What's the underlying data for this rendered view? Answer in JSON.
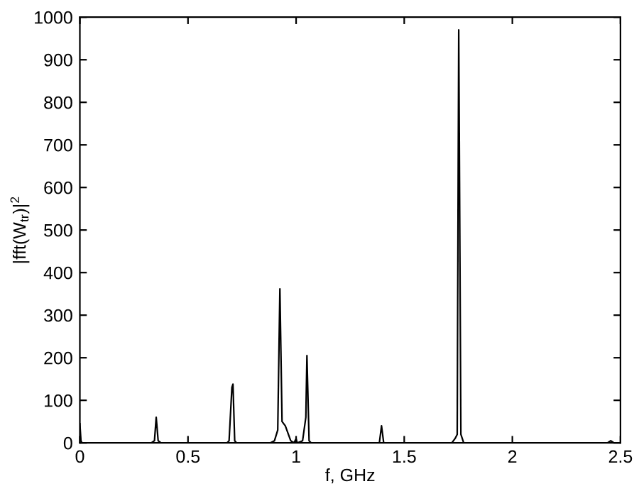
{
  "chart_data": {
    "type": "line",
    "xlabel": "f, GHz",
    "ylabel": "|fft(W$_{tr}$)|$^{2}$",
    "xlim": [
      0,
      2.5
    ],
    "xticks": [
      0,
      0.5,
      1,
      1.5,
      2,
      2.5
    ],
    "ylim": [
      0,
      1000
    ],
    "yticks": [
      0,
      100,
      200,
      300,
      400,
      500,
      600,
      700,
      800,
      900,
      1000
    ],
    "grid": false,
    "marker": "none",
    "line_style": "solid",
    "series": [
      {
        "color": "#000000",
        "x": [
          0,
          0.005,
          0.01,
          0.33,
          0.345,
          0.353,
          0.362,
          0.375,
          0.68,
          0.69,
          0.703,
          0.708,
          0.716,
          0.725,
          0.88,
          0.9,
          0.915,
          0.925,
          0.935,
          0.95,
          0.975,
          0.99,
          1.0,
          1.005,
          1.03,
          1.045,
          1.05,
          1.06,
          1.07,
          1.385,
          1.395,
          1.405,
          1.72,
          1.735,
          1.745,
          1.752,
          1.762,
          1.775,
          2.44,
          2.455,
          2.47,
          2.5
        ],
        "values": [
          45,
          5,
          0,
          0,
          5,
          60,
          5,
          0,
          0,
          5,
          130,
          138,
          5,
          0,
          0,
          5,
          30,
          362,
          50,
          40,
          5,
          0,
          10,
          0,
          5,
          60,
          205,
          5,
          0,
          0,
          40,
          0,
          0,
          10,
          20,
          970,
          20,
          0,
          0,
          5,
          0,
          0
        ]
      }
    ]
  }
}
